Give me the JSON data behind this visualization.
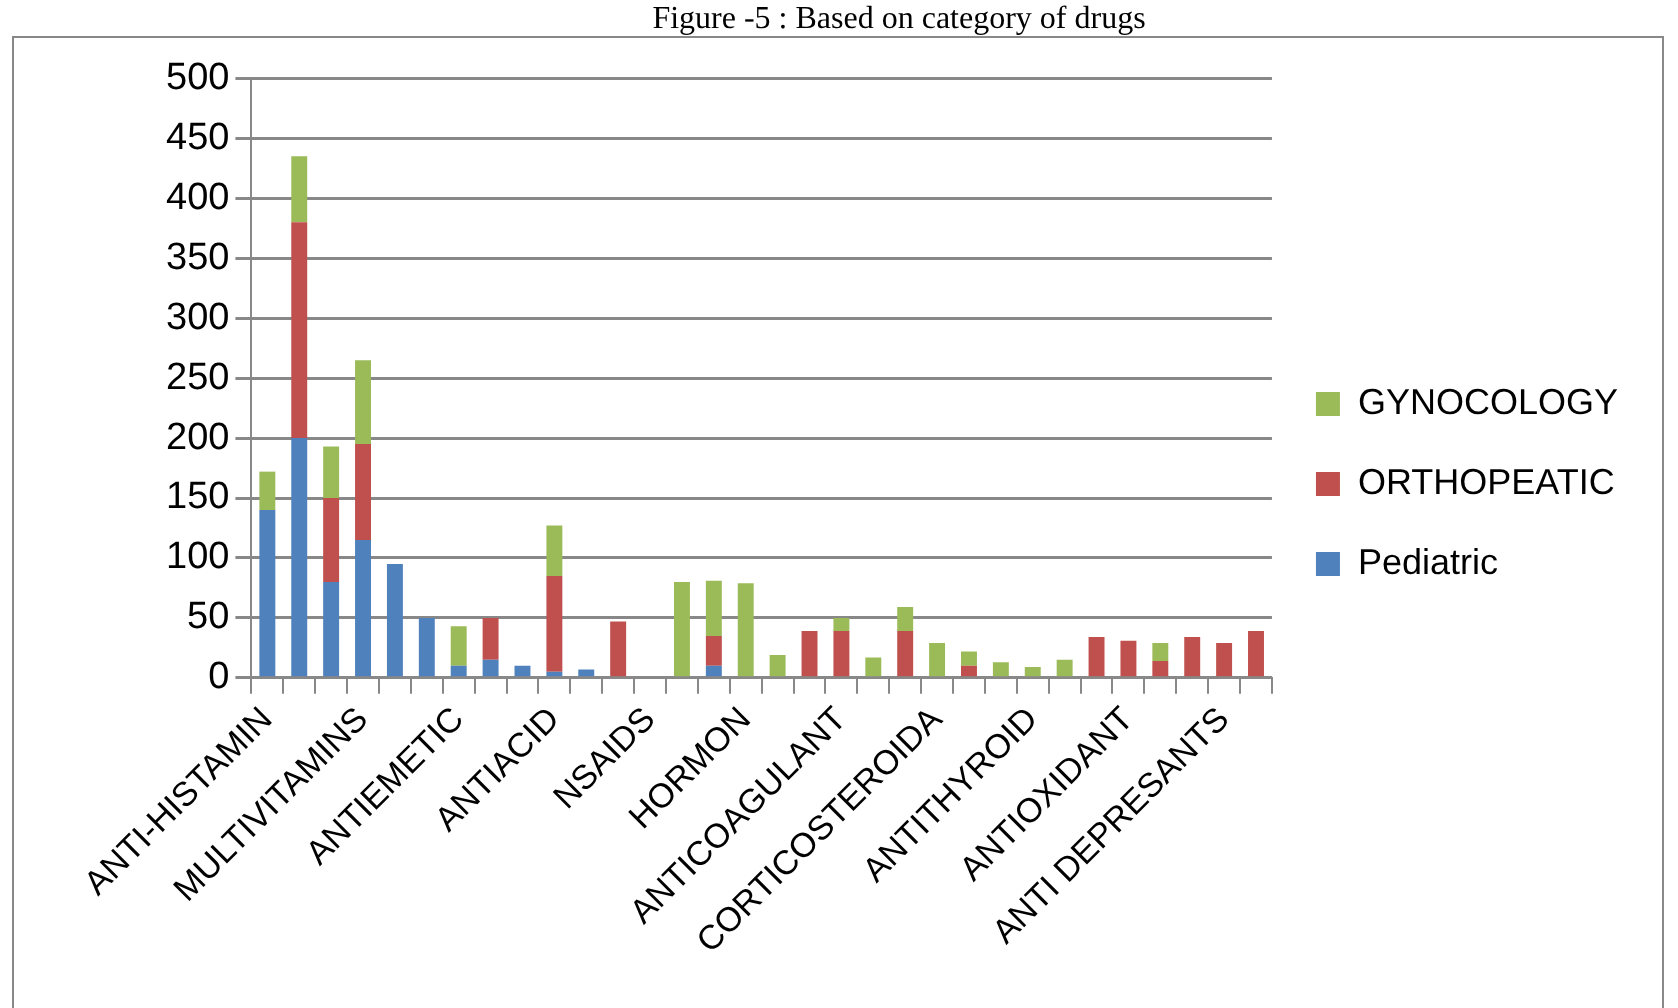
{
  "chart_data": {
    "type": "bar",
    "title": "Figure -5 : Based on category of drugs",
    "stacked": true,
    "categories": [
      "ANTI-HISTAMIN",
      null,
      null,
      "MULTIVITAMINS",
      null,
      null,
      "ANTIEMETIC",
      null,
      null,
      "ANTIACID",
      null,
      null,
      "NSAIDS",
      null,
      null,
      "HORMON",
      null,
      null,
      "ANTICOAGULANT",
      null,
      null,
      "CORTICOSTEROIDA",
      null,
      null,
      "ANTITHYROID",
      null,
      null,
      "ANTIOXIDANT",
      null,
      null,
      "ANTI DEPRESANTS",
      null
    ],
    "series": [
      {
        "name": "Pediatric",
        "color": "#4f81bd",
        "values": [
          140,
          200,
          80,
          115,
          95,
          50,
          10,
          15,
          10,
          5,
          7,
          0,
          null,
          0,
          10,
          0,
          0,
          0,
          0,
          0,
          0,
          0,
          0,
          0,
          0,
          0,
          0,
          0,
          0,
          0,
          0,
          0
        ]
      },
      {
        "name": "ORTHOPEATIC",
        "color": "#c0504d",
        "values": [
          0,
          180,
          70,
          80,
          0,
          0,
          0,
          35,
          0,
          80,
          0,
          47,
          0,
          0,
          25,
          0,
          0,
          39,
          39,
          0,
          39,
          0,
          10,
          0,
          0,
          0,
          34,
          31,
          14,
          34,
          29,
          39
        ]
      },
      {
        "name": "GYNOCOLOGY",
        "color": "#9bbb59",
        "values": [
          32,
          55,
          43,
          70,
          0,
          0,
          33,
          0,
          0,
          42,
          0,
          0,
          0,
          80,
          46,
          79,
          19,
          0,
          11,
          17,
          20,
          29,
          12,
          13,
          9,
          15,
          0,
          0,
          15,
          0,
          0,
          0
        ]
      }
    ],
    "ylim": [
      0,
      500
    ],
    "yticks": [
      0,
      50,
      100,
      150,
      200,
      250,
      300,
      350,
      400,
      450,
      500
    ],
    "grid": "y",
    "legend": "right"
  }
}
